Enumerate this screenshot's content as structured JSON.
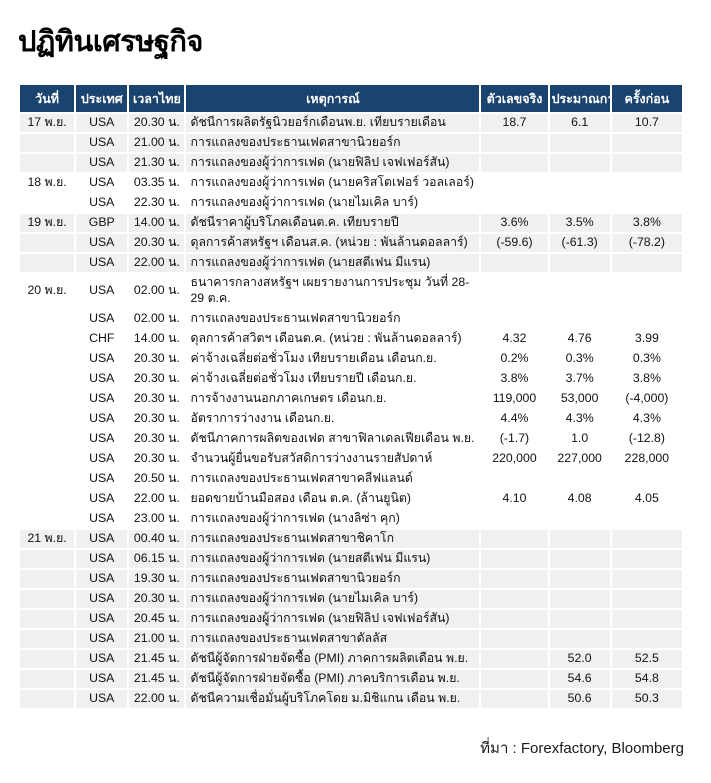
{
  "title": "ปฏิทินเศรษฐกิจ",
  "source": "ที่มา : Forexfactory, Bloomberg",
  "colors": {
    "header_bg": "#1b4370",
    "stripe_bg": "#f0f0f0",
    "text": "#111111",
    "header_text": "#ffffff"
  },
  "table": {
    "headers": [
      "วันที่",
      "ประเทศ",
      "เวลาไทย",
      "เหตุการณ์",
      "ตัวเลขจริง",
      "ประมาณการ",
      "ครั้งก่อน"
    ],
    "rows": [
      {
        "group": 0,
        "date": "17 พ.ย.",
        "country": "USA",
        "time": "20.30 น.",
        "event": "ดัชนีการผลิตรัฐนิวยอร์กเดือนพ.ย. เทียบรายเดือน",
        "actual": "18.7",
        "forecast": "6.1",
        "previous": "10.7"
      },
      {
        "group": 0,
        "date": "",
        "country": "USA",
        "time": "21.00 น.",
        "event": "การแถลงของประธานเฟดสาขานิวยอร์ก",
        "actual": "",
        "forecast": "",
        "previous": ""
      },
      {
        "group": 0,
        "date": "",
        "country": "USA",
        "time": "21.30 น.",
        "event": "การแถลงของผู้ว่าการเฟด (นายฟิลิป เจฟเฟอร์สัน)",
        "actual": "",
        "forecast": "",
        "previous": ""
      },
      {
        "group": 1,
        "date": "18 พ.ย.",
        "country": "USA",
        "time": "03.35 น.",
        "event": "การแถลงของผู้ว่าการเฟด (นายคริสโตเฟอร์ วอลเลอร์)",
        "actual": "",
        "forecast": "",
        "previous": ""
      },
      {
        "group": 1,
        "date": "",
        "country": "USA",
        "time": "22.30 น.",
        "event": "การแถลงของผู้ว่าการเฟด (นายไมเคิล บาร์)",
        "actual": "",
        "forecast": "",
        "previous": ""
      },
      {
        "group": 2,
        "date": "19 พ.ย.",
        "country": "GBP",
        "time": "14.00 น.",
        "event": "ดัชนีราคาผู้บริโภคเดือนต.ค. เทียบรายปี",
        "actual": "3.6%",
        "forecast": "3.5%",
        "previous": "3.8%"
      },
      {
        "group": 2,
        "date": "",
        "country": "USA",
        "time": "20.30 น.",
        "event": "ดุลการค้าสหรัฐฯ เดือนส.ค. (หน่วย : พันล้านดอลลาร์)",
        "actual": "(-59.6)",
        "forecast": "(-61.3)",
        "previous": "(-78.2)"
      },
      {
        "group": 2,
        "date": "",
        "country": "USA",
        "time": "22.00 น.",
        "event": "การแถลงของผู้ว่าการเฟด (นายสตีเฟน มีแรน)",
        "actual": "",
        "forecast": "",
        "previous": ""
      },
      {
        "group": 3,
        "date": "20 พ.ย.",
        "country": "USA",
        "time": "02.00 น.",
        "event": "ธนาคารกลางสหรัฐฯ เผยรายงานการประชุม วันที่ 28-29 ต.ค.",
        "actual": "",
        "forecast": "",
        "previous": ""
      },
      {
        "group": 3,
        "date": "",
        "country": "USA",
        "time": "02.00 น.",
        "event": "การแถลงของประธานเฟดสาขานิวยอร์ก",
        "actual": "",
        "forecast": "",
        "previous": ""
      },
      {
        "group": 3,
        "date": "",
        "country": "CHF",
        "time": "14.00 น.",
        "event": "ดุลการค้าสวิตฯ เดือนต.ค. (หน่วย : พันล้านดอลลาร์)",
        "actual": "4.32",
        "forecast": "4.76",
        "previous": "3.99"
      },
      {
        "group": 3,
        "date": "",
        "country": "USA",
        "time": "20.30 น.",
        "event": "ค่าจ้างเฉลี่ยต่อชั่วโมง เทียบรายเดือน เดือนก.ย.",
        "actual": "0.2%",
        "forecast": "0.3%",
        "previous": "0.3%"
      },
      {
        "group": 3,
        "date": "",
        "country": "USA",
        "time": "20.30 น.",
        "event": "ค่าจ้างเฉลี่ยต่อชั่วโมง เทียบรายปี เดือนก.ย.",
        "actual": "3.8%",
        "forecast": "3.7%",
        "previous": "3.8%"
      },
      {
        "group": 3,
        "date": "",
        "country": "USA",
        "time": "20.30 น.",
        "event": "การจ้างงานนอกภาคเกษตร เดือนก.ย.",
        "actual": "119,000",
        "forecast": "53,000",
        "previous": "(-4,000)"
      },
      {
        "group": 3,
        "date": "",
        "country": "USA",
        "time": "20.30 น.",
        "event": "อัตราการว่างงาน เดือนก.ย.",
        "actual": "4.4%",
        "forecast": "4.3%",
        "previous": "4.3%"
      },
      {
        "group": 3,
        "date": "",
        "country": "USA",
        "time": "20.30 น.",
        "event": "ดัชนีภาคการผลิตของเฟด สาขาฟิลาเดลเฟียเดือน พ.ย.",
        "actual": "(-1.7)",
        "forecast": "1.0",
        "previous": "(-12.8)"
      },
      {
        "group": 3,
        "date": "",
        "country": "USA",
        "time": "20.30 น.",
        "event": "จำนวนผู้ยื่นขอรับสวัสดิการว่างงานรายสัปดาห์",
        "actual": "220,000",
        "forecast": "227,000",
        "previous": "228,000"
      },
      {
        "group": 3,
        "date": "",
        "country": "USA",
        "time": "20.50 น.",
        "event": "การแถลงของประธานเฟดสาขาคลีฟแลนด์",
        "actual": "",
        "forecast": "",
        "previous": ""
      },
      {
        "group": 3,
        "date": "",
        "country": "USA",
        "time": "22.00 น.",
        "event": "ยอดขายบ้านมือสอง เดือน ต.ค. (ล้านยูนิต)",
        "actual": "4.10",
        "forecast": "4.08",
        "previous": "4.05"
      },
      {
        "group": 3,
        "date": "",
        "country": "USA",
        "time": "23.00 น.",
        "event": "การแถลงของผู้ว่าการเฟด (นางลิซ่า คุก)",
        "actual": "",
        "forecast": "",
        "previous": ""
      },
      {
        "group": 4,
        "date": "21 พ.ย.",
        "country": "USA",
        "time": "00.40 น.",
        "event": "การแถลงของประธานเฟดสาขาชิคาโก",
        "actual": "",
        "forecast": "",
        "previous": ""
      },
      {
        "group": 4,
        "date": "",
        "country": "USA",
        "time": "06.15 น.",
        "event": "การแถลงของผู้ว่าการเฟด (นายสตีเฟน มีแรน)",
        "actual": "",
        "forecast": "",
        "previous": ""
      },
      {
        "group": 4,
        "date": "",
        "country": "USA",
        "time": "19.30 น.",
        "event": "การแถลงของประธานเฟดสาขานิวยอร์ก",
        "actual": "",
        "forecast": "",
        "previous": ""
      },
      {
        "group": 4,
        "date": "",
        "country": "USA",
        "time": "20.30 น.",
        "event": "การแถลงของผู้ว่าการเฟด (นายไมเคิล บาร์)",
        "actual": "",
        "forecast": "",
        "previous": ""
      },
      {
        "group": 4,
        "date": "",
        "country": "USA",
        "time": "20.45 น.",
        "event": "การแถลงของผู้ว่าการเฟด (นายฟิลิป เจฟเฟอร์สัน)",
        "actual": "",
        "forecast": "",
        "previous": ""
      },
      {
        "group": 4,
        "date": "",
        "country": "USA",
        "time": "21.00 น.",
        "event": "การแถลงของประธานเฟดสาขาดัลลัส",
        "actual": "",
        "forecast": "",
        "previous": ""
      },
      {
        "group": 4,
        "date": "",
        "country": "USA",
        "time": "21.45 น.",
        "event": "ดัชนีผู้จัดการฝ่ายจัดซื้อ (PMI) ภาคการผลิตเดือน พ.ย.",
        "actual": "",
        "forecast": "52.0",
        "previous": "52.5"
      },
      {
        "group": 4,
        "date": "",
        "country": "USA",
        "time": "21.45 น.",
        "event": "ดัชนีผู้จัดการฝ่ายจัดซื้อ (PMI) ภาคบริการเดือน พ.ย.",
        "actual": "",
        "forecast": "54.6",
        "previous": "54.8"
      },
      {
        "group": 4,
        "date": "",
        "country": "USA",
        "time": "22.00 น.",
        "event": "ดัชนีความเชื่อมั่นผู้บริโภคโดย ม.มิชิแกน เดือน พ.ย.",
        "actual": "",
        "forecast": "50.6",
        "previous": "50.3"
      }
    ]
  }
}
